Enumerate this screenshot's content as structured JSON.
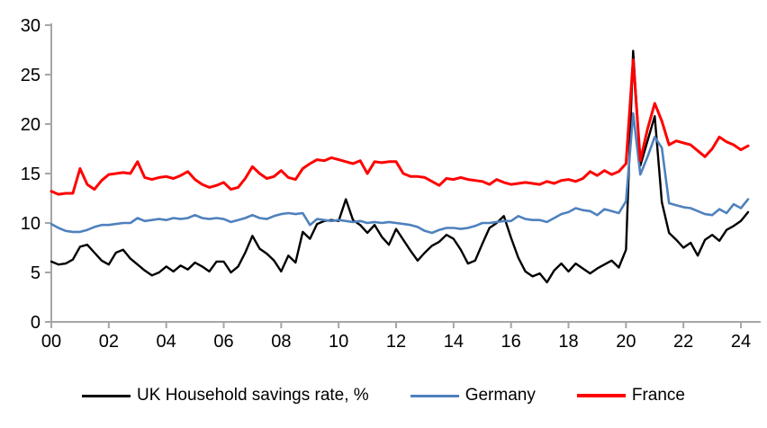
{
  "chart_data": {
    "type": "line",
    "title": "",
    "xlabel": "",
    "ylabel": "",
    "unit": "%",
    "grid": false,
    "legend_position": "bottom",
    "ylim": [
      0,
      30
    ],
    "y_ticks": [
      0,
      5,
      10,
      15,
      20,
      25,
      30
    ],
    "x_range": [
      2000,
      2024.25
    ],
    "x_start": 2000,
    "x_step": 0.25,
    "x_frequency": "quarterly",
    "x_ticks": [
      {
        "label": "00",
        "year": 2000
      },
      {
        "label": "02",
        "year": 2002
      },
      {
        "label": "04",
        "year": 2004
      },
      {
        "label": "06",
        "year": 2006
      },
      {
        "label": "08",
        "year": 2008
      },
      {
        "label": "10",
        "year": 2010
      },
      {
        "label": "12",
        "year": 2012
      },
      {
        "label": "14",
        "year": 2014
      },
      {
        "label": "16",
        "year": 2016
      },
      {
        "label": "18",
        "year": 2018
      },
      {
        "label": "20",
        "year": 2020
      },
      {
        "label": "22",
        "year": 2022
      },
      {
        "label": "24",
        "year": 2024
      }
    ],
    "axis_color": "#a6a6a6",
    "text_color": "#000000",
    "series": [
      {
        "id": "uk",
        "name": "UK Household savings rate, %",
        "color": "#000000",
        "values": [
          6.1,
          5.8,
          5.9,
          6.3,
          7.6,
          7.8,
          7.0,
          6.2,
          5.8,
          7.0,
          7.3,
          6.4,
          5.8,
          5.2,
          4.7,
          5.0,
          5.6,
          5.1,
          5.7,
          5.3,
          6.0,
          5.6,
          5.1,
          6.1,
          6.1,
          5.0,
          5.6,
          7.0,
          8.7,
          7.4,
          6.9,
          6.2,
          5.1,
          6.7,
          6.0,
          9.1,
          8.4,
          9.9,
          10.2,
          10.3,
          10.2,
          12.4,
          10.3,
          9.8,
          9.0,
          9.8,
          8.6,
          7.8,
          9.4,
          8.3,
          7.2,
          6.2,
          7.0,
          7.7,
          8.1,
          8.8,
          8.4,
          7.3,
          5.9,
          6.2,
          7.9,
          9.5,
          10.0,
          10.7,
          8.5,
          6.5,
          5.1,
          4.6,
          4.9,
          4.0,
          5.2,
          5.9,
          5.1,
          5.9,
          5.4,
          4.9,
          5.4,
          5.8,
          6.2,
          5.5,
          7.3,
          27.4,
          15.8,
          18.3,
          20.8,
          12.1,
          9.0,
          8.3,
          7.5,
          8.0,
          6.7,
          8.3,
          8.8,
          8.2,
          9.3,
          9.7,
          10.2,
          11.1
        ]
      },
      {
        "id": "germany",
        "name": "Germany",
        "color": "#4f81bd",
        "values": [
          9.9,
          9.5,
          9.2,
          9.1,
          9.1,
          9.3,
          9.6,
          9.8,
          9.8,
          9.9,
          10.0,
          10.0,
          10.5,
          10.2,
          10.3,
          10.4,
          10.3,
          10.5,
          10.4,
          10.5,
          10.8,
          10.5,
          10.4,
          10.5,
          10.4,
          10.1,
          10.3,
          10.5,
          10.8,
          10.5,
          10.4,
          10.7,
          10.9,
          11.0,
          10.9,
          11.0,
          9.8,
          10.4,
          10.3,
          10.2,
          10.3,
          10.2,
          10.1,
          10.2,
          10.0,
          10.1,
          10.0,
          10.1,
          10.0,
          9.9,
          9.8,
          9.6,
          9.2,
          9.0,
          9.3,
          9.5,
          9.5,
          9.4,
          9.5,
          9.7,
          10.0,
          10.0,
          10.1,
          10.2,
          10.2,
          10.7,
          10.4,
          10.3,
          10.3,
          10.1,
          10.5,
          10.9,
          11.1,
          11.5,
          11.3,
          11.2,
          10.8,
          11.4,
          11.2,
          11.0,
          12.2,
          21.1,
          14.9,
          16.7,
          18.7,
          17.6,
          12.0,
          11.8,
          11.6,
          11.5,
          11.2,
          10.9,
          10.8,
          11.4,
          11.0,
          11.9,
          11.5,
          12.4
        ]
      },
      {
        "id": "france",
        "name": "France",
        "color": "#ff0000",
        "values": [
          13.2,
          12.9,
          13.0,
          13.0,
          15.5,
          13.9,
          13.4,
          14.3,
          14.9,
          15.0,
          15.1,
          15.0,
          16.2,
          14.6,
          14.4,
          14.6,
          14.7,
          14.5,
          14.8,
          15.2,
          14.4,
          13.9,
          13.6,
          13.8,
          14.1,
          13.4,
          13.6,
          14.5,
          15.7,
          15.0,
          14.5,
          14.7,
          15.3,
          14.6,
          14.4,
          15.5,
          16.0,
          16.4,
          16.3,
          16.6,
          16.4,
          16.2,
          16.0,
          16.3,
          15.0,
          16.2,
          16.1,
          16.2,
          16.2,
          15.0,
          14.7,
          14.7,
          14.6,
          14.2,
          13.8,
          14.5,
          14.4,
          14.6,
          14.4,
          14.3,
          14.2,
          13.9,
          14.4,
          14.1,
          13.9,
          14.0,
          14.1,
          14.0,
          13.9,
          14.2,
          14.0,
          14.3,
          14.4,
          14.2,
          14.5,
          15.2,
          14.8,
          15.3,
          14.9,
          15.2,
          16.0,
          26.5,
          16.3,
          19.5,
          22.1,
          20.3,
          17.9,
          18.3,
          18.1,
          17.9,
          17.3,
          16.7,
          17.5,
          18.7,
          18.2,
          17.9,
          17.4,
          17.8
        ]
      }
    ]
  },
  "legend": {
    "items": [
      {
        "label": "UK Household savings rate, %"
      },
      {
        "label": "Germany"
      },
      {
        "label": "France"
      }
    ]
  }
}
